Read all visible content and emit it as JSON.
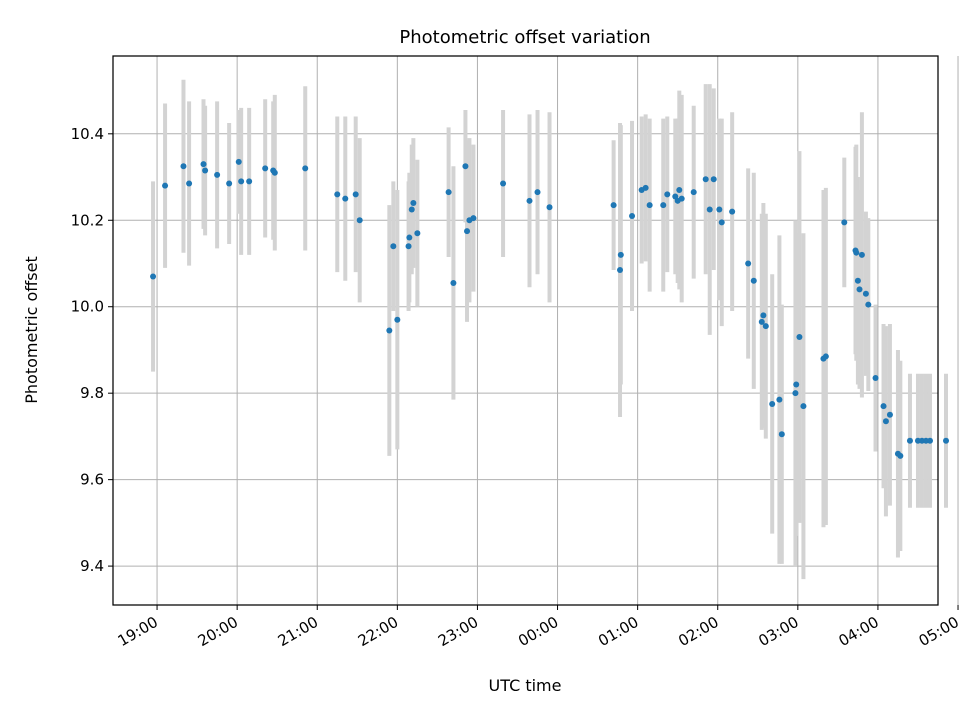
{
  "chart_data": {
    "type": "scatter",
    "title": "Photometric offset variation",
    "xlabel": "UTC time",
    "ylabel": "Photometric offset",
    "x_tick_labels": [
      "19:00",
      "20:00",
      "21:00",
      "22:00",
      "23:00",
      "00:00",
      "01:00",
      "02:00",
      "03:00",
      "04:00",
      "05:00"
    ],
    "y_ticks": [
      9.4,
      9.6,
      9.8,
      10.0,
      10.2,
      10.4
    ],
    "y_tick_labels": [
      "9.4",
      "9.6",
      "9.8",
      "10.0",
      "10.2",
      "10.4"
    ],
    "xlim": [
      -0.55,
      9.75
    ],
    "ylim": [
      9.31,
      10.58
    ],
    "grid": true,
    "point_color": "#1f77b4",
    "errorbar_color": "#d3d3d3",
    "x_unit": "hours after 19:00 UTC",
    "series": [
      {
        "x": [
          -0.05,
          0.1,
          0.33,
          0.4,
          0.58,
          0.6,
          0.75,
          0.9,
          1.02,
          1.05,
          1.15,
          1.35,
          1.45,
          1.47,
          1.85,
          2.25,
          2.35,
          2.48,
          2.53,
          2.9,
          2.95,
          3.0,
          3.14,
          3.15,
          3.18,
          3.2,
          3.25,
          3.64,
          3.7,
          3.85,
          3.87,
          3.9,
          3.95,
          4.32,
          4.65,
          4.75,
          4.9,
          5.7,
          5.78,
          5.79,
          5.93,
          6.05,
          6.1,
          6.15,
          6.32,
          6.37,
          6.47,
          6.5,
          6.52,
          6.55,
          6.7,
          6.85,
          6.9,
          6.95,
          7.02,
          7.05,
          7.18,
          7.38,
          7.45,
          7.55,
          7.57,
          7.6,
          7.68,
          7.77,
          7.8,
          7.97,
          7.98,
          8.02,
          8.07,
          8.32,
          8.35,
          8.58,
          8.72,
          8.73,
          8.75,
          8.77,
          8.8,
          8.85,
          8.88,
          8.97,
          9.07,
          9.1,
          9.15,
          9.25,
          9.28,
          9.4,
          9.5,
          9.55,
          9.6,
          9.65,
          9.85
        ],
        "y": [
          10.07,
          10.28,
          10.325,
          10.285,
          10.33,
          10.315,
          10.305,
          10.285,
          10.335,
          10.29,
          10.29,
          10.32,
          10.315,
          10.31,
          10.32,
          10.26,
          10.25,
          10.26,
          10.2,
          9.945,
          10.14,
          9.97,
          10.14,
          10.16,
          10.225,
          10.24,
          10.17,
          10.265,
          10.055,
          10.325,
          10.175,
          10.2,
          10.205,
          10.285,
          10.245,
          10.265,
          10.23,
          10.235,
          10.085,
          10.12,
          10.21,
          10.27,
          10.275,
          10.235,
          10.235,
          10.26,
          10.255,
          10.245,
          10.27,
          10.25,
          10.265,
          10.295,
          10.225,
          10.295,
          10.225,
          10.195,
          10.22,
          10.1,
          10.06,
          9.965,
          9.98,
          9.955,
          9.775,
          9.785,
          9.705,
          9.8,
          9.82,
          9.93,
          9.77,
          9.88,
          9.885,
          10.195,
          10.13,
          10.125,
          10.06,
          10.04,
          10.12,
          10.03,
          10.005,
          9.835,
          9.77,
          9.735,
          9.75,
          9.66,
          9.655,
          9.69,
          9.69,
          9.69,
          9.69,
          9.69,
          9.69
        ],
        "yerr": [
          0.22,
          0.19,
          0.2,
          0.19,
          0.15,
          0.15,
          0.17,
          0.14,
          0.12,
          0.17,
          0.17,
          0.16,
          0.16,
          0.18,
          0.19,
          0.18,
          0.19,
          0.18,
          0.19,
          0.29,
          0.15,
          0.3,
          0.15,
          0.15,
          0.15,
          0.15,
          0.17,
          0.15,
          0.27,
          0.13,
          0.21,
          0.19,
          0.17,
          0.17,
          0.2,
          0.19,
          0.22,
          0.15,
          0.34,
          0.3,
          0.22,
          0.17,
          0.17,
          0.2,
          0.2,
          0.18,
          0.18,
          0.19,
          0.23,
          0.24,
          0.2,
          0.22,
          0.29,
          0.21,
          0.21,
          0.24,
          0.23,
          0.22,
          0.25,
          0.25,
          0.26,
          0.26,
          0.3,
          0.38,
          0.3,
          0.4,
          0.35,
          0.43,
          0.4,
          0.39,
          0.39,
          0.15,
          0.24,
          0.25,
          0.24,
          0.23,
          0.33,
          0.19,
          0.2,
          0.17,
          0.19,
          0.22,
          0.21,
          0.24,
          0.22,
          0.155,
          0.155,
          0.155,
          0.155,
          0.155,
          0.155
        ]
      }
    ]
  }
}
